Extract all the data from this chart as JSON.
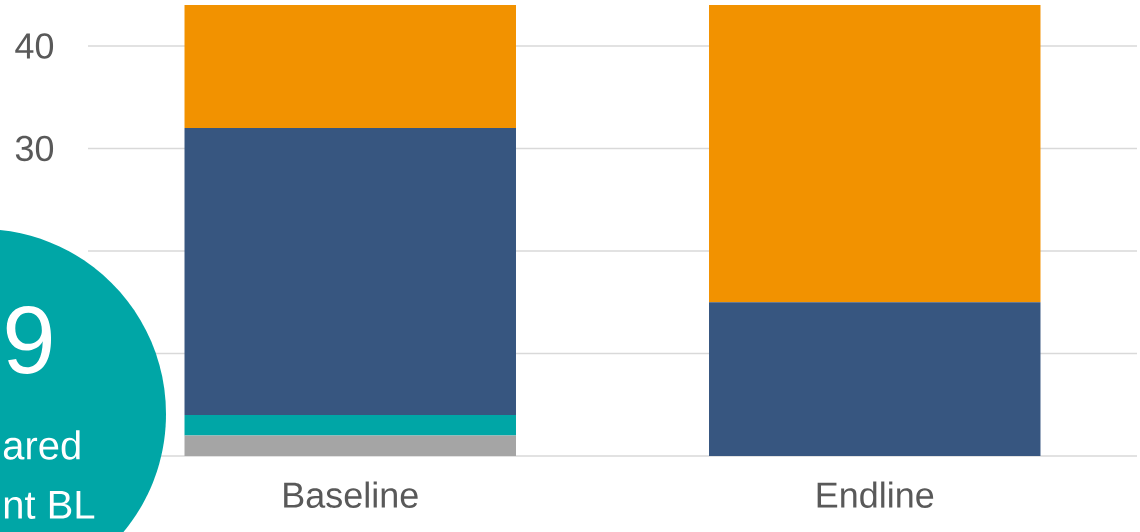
{
  "chart_data": {
    "type": "bar",
    "stacked": true,
    "categories": [
      "Baseline",
      "Endline"
    ],
    "series": [
      {
        "color": "#a5a5a5",
        "values": [
          2,
          0
        ]
      },
      {
        "color": "#00a6a6",
        "values": [
          2,
          0
        ]
      },
      {
        "color": "#375680",
        "values": [
          28,
          15
        ]
      },
      {
        "color": "#f29200",
        "values": [
          12,
          29
        ]
      }
    ],
    "ylim": [
      0,
      44
    ],
    "yticks": [
      {
        "value": 0,
        "label": null
      },
      {
        "value": 10,
        "label": null
      },
      {
        "value": 20,
        "label": null
      },
      30,
      40
    ],
    "grid": "y",
    "annotations": [
      "9",
      "ared",
      "nt BL"
    ]
  }
}
